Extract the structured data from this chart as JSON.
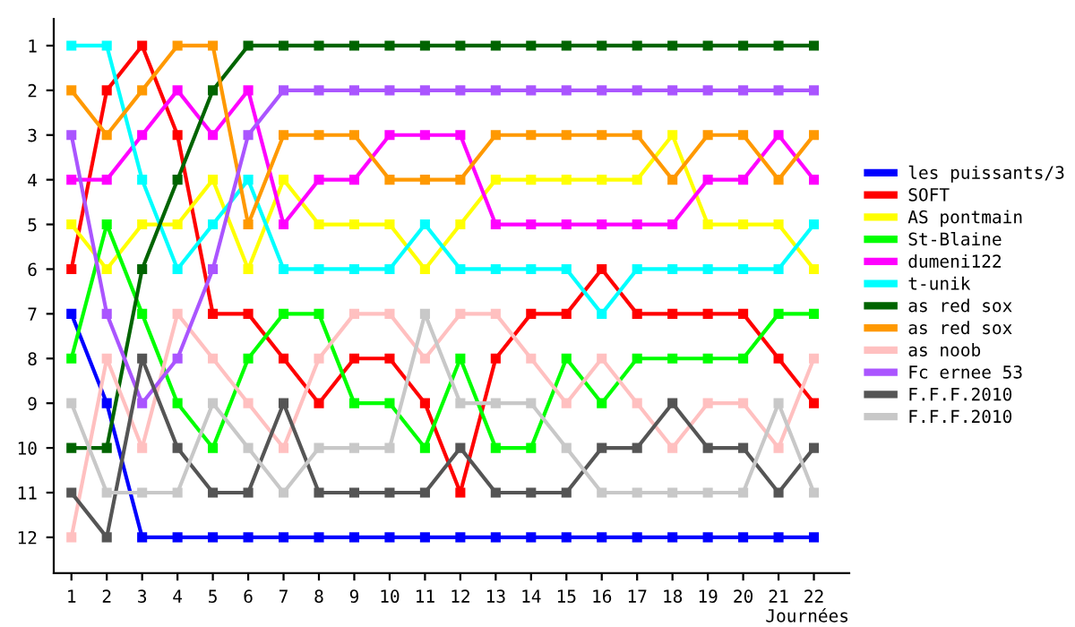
{
  "chart_data": {
    "type": "line",
    "xlabel": "Journées",
    "x": [
      1,
      2,
      3,
      4,
      5,
      6,
      7,
      8,
      9,
      10,
      11,
      12,
      13,
      14,
      15,
      16,
      17,
      18,
      19,
      20,
      21,
      22
    ],
    "xlim": [
      0.5,
      23
    ],
    "xticks": [
      1,
      2,
      3,
      4,
      5,
      6,
      7,
      8,
      9,
      10,
      11,
      12,
      13,
      14,
      15,
      16,
      17,
      18,
      19,
      20,
      21,
      22
    ],
    "ylim": [
      12.8,
      0.4
    ],
    "yticks": [
      1,
      2,
      3,
      4,
      5,
      6,
      7,
      8,
      9,
      10,
      11,
      12
    ],
    "grid": false,
    "legend": "right",
    "marker": "square",
    "line_style": "solid",
    "series": [
      {
        "name": "les puissants/3",
        "color": "#0000ff",
        "values": [
          7,
          9,
          12,
          12,
          12,
          12,
          12,
          12,
          12,
          12,
          12,
          12,
          12,
          12,
          12,
          12,
          12,
          12,
          12,
          12,
          12,
          12
        ]
      },
      {
        "name": "SOFT",
        "color": "#ff0000",
        "values": [
          6,
          2,
          1,
          3,
          7,
          7,
          8,
          9,
          8,
          8,
          9,
          11,
          8,
          7,
          7,
          6,
          7,
          7,
          7,
          7,
          8,
          9
        ]
      },
      {
        "name": "AS pontmain",
        "color": "#ffff00",
        "values": [
          5,
          6,
          5,
          5,
          4,
          6,
          4,
          5,
          5,
          5,
          6,
          5,
          4,
          4,
          4,
          4,
          4,
          3,
          5,
          5,
          5,
          6
        ]
      },
      {
        "name": "St-Blaine",
        "color": "#00ff00",
        "values": [
          8,
          5,
          7,
          9,
          10,
          8,
          7,
          7,
          9,
          9,
          10,
          8,
          10,
          10,
          8,
          9,
          8,
          8,
          8,
          8,
          7,
          7
        ]
      },
      {
        "name": "dumeni122",
        "color": "#ff00ff",
        "values": [
          4,
          4,
          3,
          2,
          3,
          2,
          5,
          4,
          4,
          3,
          3,
          3,
          5,
          5,
          5,
          5,
          5,
          5,
          4,
          4,
          3,
          4
        ]
      },
      {
        "name": "t-unik",
        "color": "#00ffff",
        "values": [
          1,
          1,
          4,
          6,
          5,
          4,
          6,
          6,
          6,
          6,
          5,
          6,
          6,
          6,
          6,
          7,
          6,
          6,
          6,
          6,
          6,
          5
        ]
      },
      {
        "name": "as red sox",
        "color": "#006400",
        "values": [
          10,
          10,
          6,
          4,
          2,
          1,
          1,
          1,
          1,
          1,
          1,
          1,
          1,
          1,
          1,
          1,
          1,
          1,
          1,
          1,
          1,
          1
        ]
      },
      {
        "name": "as red sox",
        "color": "#ff9900",
        "values": [
          2,
          3,
          2,
          1,
          1,
          5,
          3,
          3,
          3,
          4,
          4,
          4,
          3,
          3,
          3,
          3,
          3,
          4,
          3,
          3,
          4,
          3
        ]
      },
      {
        "name": "as noob",
        "color": "#ffc0c0",
        "values": [
          12,
          8,
          10,
          7,
          8,
          9,
          10,
          8,
          7,
          7,
          8,
          7,
          7,
          8,
          9,
          8,
          9,
          10,
          9,
          9,
          10,
          8
        ]
      },
      {
        "name": "Fc ernee 53",
        "color": "#aa55ff",
        "values": [
          3,
          7,
          9,
          8,
          6,
          3,
          2,
          2,
          2,
          2,
          2,
          2,
          2,
          2,
          2,
          2,
          2,
          2,
          2,
          2,
          2,
          2
        ]
      },
      {
        "name": "F.F.F.2010",
        "color": "#555555",
        "values": [
          11,
          12,
          8,
          10,
          11,
          11,
          9,
          11,
          11,
          11,
          11,
          10,
          11,
          11,
          11,
          10,
          10,
          9,
          10,
          10,
          11,
          10
        ]
      },
      {
        "name": "F.F.F.2010",
        "color": "#c8c8c8",
        "values": [
          9,
          11,
          11,
          11,
          9,
          10,
          11,
          10,
          10,
          10,
          7,
          9,
          9,
          9,
          10,
          11,
          11,
          11,
          11,
          11,
          9,
          11
        ]
      }
    ]
  }
}
